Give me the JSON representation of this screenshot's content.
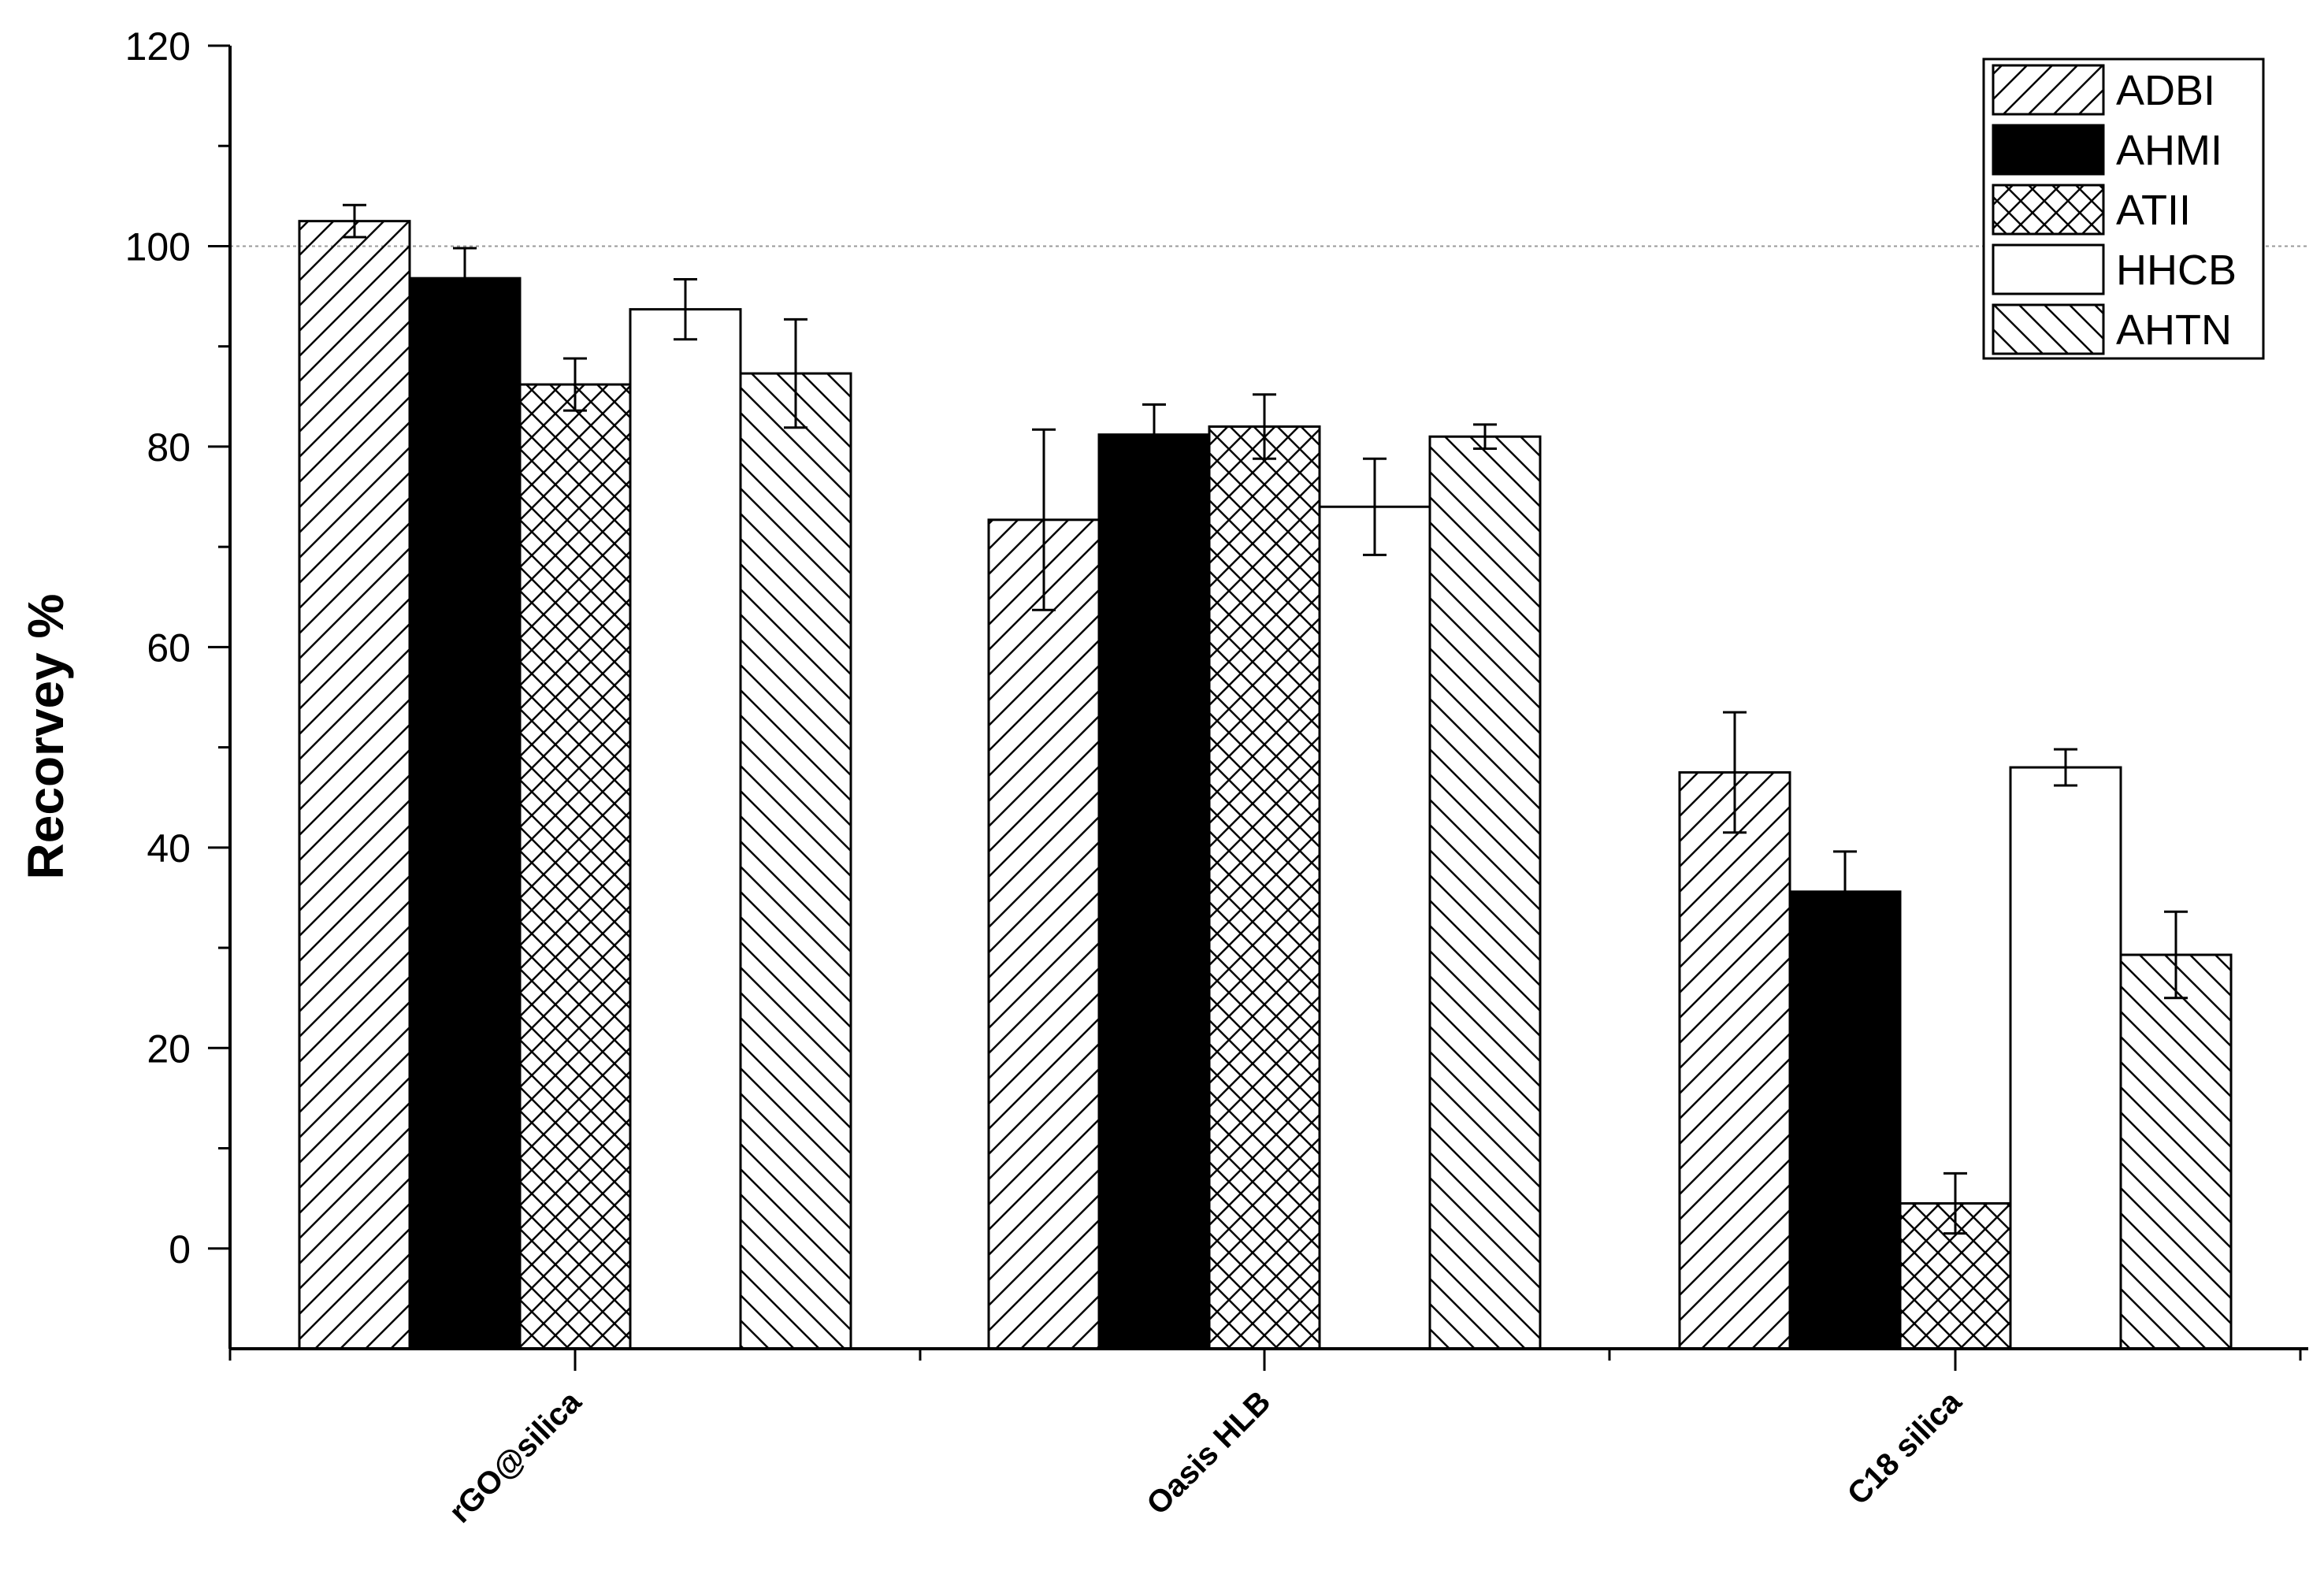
{
  "chart_data": {
    "type": "bar",
    "title": "",
    "xlabel": "",
    "ylabel": "Recorvey %",
    "ylim": [
      -10,
      120
    ],
    "yticks": [
      0,
      20,
      40,
      60,
      80,
      100,
      120
    ],
    "reference_line": 100,
    "grid": false,
    "legend_position": "top-right",
    "categories": [
      "rGO@silica",
      "Oasis HLB",
      "C18 silica"
    ],
    "series": [
      {
        "name": "ADBI",
        "pattern": "diag-up",
        "values": [
          102.5,
          72.7,
          47.5
        ],
        "errors": [
          1.6,
          9.0,
          6.0
        ]
      },
      {
        "name": "AHMI",
        "pattern": "solid-black",
        "values": [
          96.8,
          81.2,
          35.6
        ],
        "errors": [
          3.0,
          3.0,
          4.0
        ]
      },
      {
        "name": "ATII",
        "pattern": "crosshatch",
        "values": [
          86.2,
          82.0,
          4.5
        ],
        "errors": [
          2.6,
          3.2,
          3.0
        ]
      },
      {
        "name": "HHCB",
        "pattern": "empty",
        "values": [
          93.7,
          74.0,
          48.0
        ],
        "errors": [
          3.0,
          4.8,
          1.8
        ]
      },
      {
        "name": "AHTN",
        "pattern": "diag-down",
        "values": [
          87.3,
          81.0,
          29.3
        ],
        "errors": [
          5.4,
          1.2,
          4.3
        ]
      }
    ]
  }
}
